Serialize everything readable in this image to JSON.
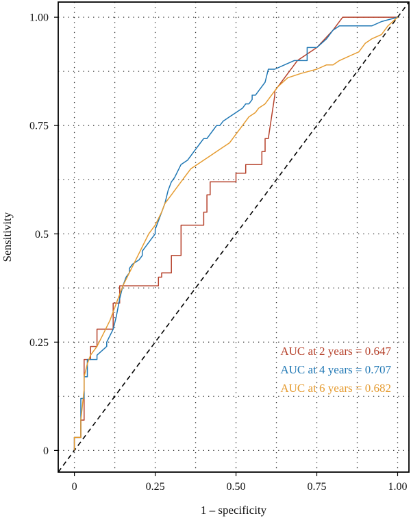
{
  "chart_data": {
    "type": "line",
    "title": "",
    "xlabel": "1 – specificity",
    "ylabel": "Sensitivity",
    "xlim": [
      -0.05,
      1.035
    ],
    "ylim": [
      -0.05,
      1.035
    ],
    "x_ticks": [
      0,
      0.25,
      0.5,
      0.75,
      1.0
    ],
    "x_tick_labels": [
      "0",
      "0.25",
      "0.50",
      "0.75",
      "1.00"
    ],
    "y_ticks": [
      0,
      0.25,
      0.5,
      0.75,
      1.0
    ],
    "y_tick_labels": [
      "0",
      "0.25",
      "0.5",
      "0.75",
      "1.00"
    ],
    "grid": true,
    "grid_style": "dotted",
    "legend_position": "bottom-right",
    "reference_line": {
      "style": "dashed",
      "color": "#000000",
      "from": [
        -0.05,
        -0.05
      ],
      "to": [
        1.035,
        1.035
      ]
    },
    "series": [
      {
        "legend": "AUC at 2 years = 0.647",
        "color": "#B5402A",
        "x": [
          0,
          0,
          0.02,
          0.02,
          0.03,
          0.03,
          0.03,
          0.05,
          0.05,
          0.07,
          0.07,
          0.12,
          0.12,
          0.14,
          0.14,
          0.26,
          0.26,
          0.27,
          0.27,
          0.3,
          0.3,
          0.33,
          0.33,
          0.4,
          0.4,
          0.41,
          0.41,
          0.42,
          0.42,
          0.5,
          0.5,
          0.53,
          0.53,
          0.58,
          0.58,
          0.59,
          0.59,
          0.6,
          0.62,
          0.62,
          0.69,
          0.69,
          0.75,
          0.75,
          0.8,
          0.8,
          0.83,
          0.83,
          1.0
        ],
        "y": [
          0,
          0.03,
          0.03,
          0.07,
          0.07,
          0.14,
          0.21,
          0.21,
          0.24,
          0.24,
          0.28,
          0.28,
          0.34,
          0.34,
          0.38,
          0.38,
          0.4,
          0.4,
          0.41,
          0.41,
          0.45,
          0.45,
          0.52,
          0.52,
          0.55,
          0.55,
          0.59,
          0.59,
          0.62,
          0.62,
          0.64,
          0.64,
          0.66,
          0.66,
          0.69,
          0.69,
          0.72,
          0.72,
          0.82,
          0.83,
          0.9,
          0.9,
          0.93,
          0.93,
          0.97,
          0.97,
          1.0,
          1.0,
          1.0
        ]
      },
      {
        "legend": "AUC at 4 years = 0.707",
        "color": "#1F77B4",
        "x": [
          0,
          0,
          0.02,
          0.02,
          0.02,
          0.03,
          0.03,
          0.04,
          0.04,
          0.05,
          0.07,
          0.07,
          0.1,
          0.1,
          0.12,
          0.13,
          0.14,
          0.15,
          0.16,
          0.17,
          0.17,
          0.18,
          0.2,
          0.21,
          0.21,
          0.22,
          0.23,
          0.24,
          0.25,
          0.25,
          0.26,
          0.27,
          0.28,
          0.29,
          0.3,
          0.31,
          0.31,
          0.33,
          0.35,
          0.36,
          0.37,
          0.38,
          0.39,
          0.4,
          0.41,
          0.42,
          0.43,
          0.44,
          0.45,
          0.45,
          0.46,
          0.48,
          0.5,
          0.52,
          0.53,
          0.54,
          0.55,
          0.55,
          0.56,
          0.57,
          0.58,
          0.59,
          0.6,
          0.62,
          0.65,
          0.68,
          0.72,
          0.72,
          0.74,
          0.75,
          0.78,
          0.8,
          0.82,
          0.85,
          0.87,
          0.9,
          0.92,
          0.95,
          1.0
        ],
        "y": [
          0,
          0.03,
          0.03,
          0.08,
          0.12,
          0.12,
          0.17,
          0.17,
          0.21,
          0.21,
          0.21,
          0.22,
          0.24,
          0.25,
          0.28,
          0.31,
          0.35,
          0.38,
          0.4,
          0.41,
          0.42,
          0.43,
          0.44,
          0.45,
          0.46,
          0.47,
          0.48,
          0.49,
          0.5,
          0.51,
          0.53,
          0.55,
          0.57,
          0.6,
          0.62,
          0.63,
          0.63,
          0.66,
          0.67,
          0.68,
          0.69,
          0.7,
          0.71,
          0.72,
          0.72,
          0.73,
          0.74,
          0.75,
          0.75,
          0.75,
          0.76,
          0.77,
          0.78,
          0.79,
          0.8,
          0.8,
          0.81,
          0.82,
          0.82,
          0.83,
          0.84,
          0.85,
          0.88,
          0.88,
          0.89,
          0.9,
          0.9,
          0.93,
          0.93,
          0.93,
          0.95,
          0.97,
          0.98,
          0.98,
          0.98,
          0.98,
          0.98,
          0.99,
          1.0
        ]
      },
      {
        "legend": "AUC at 6 years = 0.682",
        "color": "#E59B30",
        "x": [
          0,
          0,
          0.02,
          0.02,
          0.03,
          0.03,
          0.04,
          0.05,
          0.07,
          0.09,
          0.11,
          0.13,
          0.15,
          0.17,
          0.19,
          0.21,
          0.23,
          0.25,
          0.27,
          0.28,
          0.3,
          0.32,
          0.34,
          0.36,
          0.38,
          0.4,
          0.42,
          0.44,
          0.46,
          0.48,
          0.5,
          0.52,
          0.54,
          0.56,
          0.57,
          0.59,
          0.61,
          0.63,
          0.66,
          0.7,
          0.75,
          0.78,
          0.8,
          0.82,
          0.85,
          0.88,
          0.9,
          0.92,
          0.95,
          0.97,
          1.0
        ],
        "y": [
          0,
          0.03,
          0.03,
          0.07,
          0.14,
          0.17,
          0.2,
          0.22,
          0.24,
          0.27,
          0.3,
          0.34,
          0.38,
          0.41,
          0.44,
          0.47,
          0.5,
          0.52,
          0.55,
          0.57,
          0.59,
          0.61,
          0.63,
          0.65,
          0.66,
          0.67,
          0.68,
          0.69,
          0.7,
          0.71,
          0.73,
          0.75,
          0.77,
          0.78,
          0.79,
          0.8,
          0.82,
          0.84,
          0.86,
          0.87,
          0.88,
          0.89,
          0.89,
          0.9,
          0.91,
          0.92,
          0.94,
          0.95,
          0.96,
          0.98,
          1.0
        ]
      }
    ]
  }
}
